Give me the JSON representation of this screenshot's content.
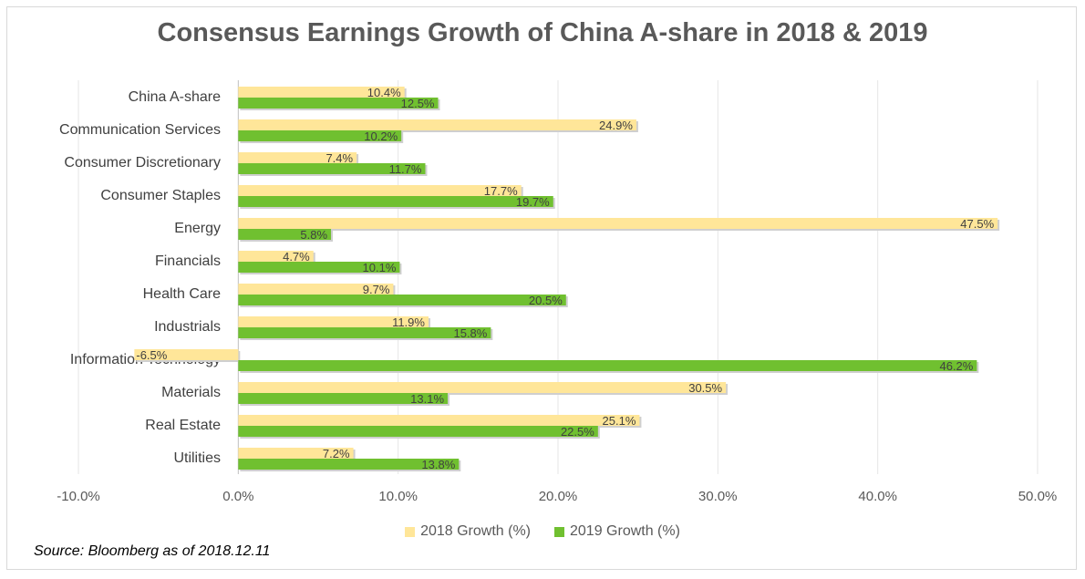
{
  "chart_data": {
    "type": "bar",
    "orientation": "horizontal",
    "title": "Consensus Earnings Growth of China A-share in 2018 & 2019",
    "categories": [
      "China A-share",
      "Communication Services",
      "Consumer Discretionary",
      "Consumer Staples",
      "Energy",
      "Financials",
      "Health Care",
      "Industrials",
      "Information Technology",
      "Materials",
      "Real Estate",
      "Utilities"
    ],
    "series": [
      {
        "name": "2018 Growth (%)",
        "color": "#ffe699",
        "values": [
          10.4,
          24.9,
          7.4,
          17.7,
          47.5,
          4.7,
          9.7,
          11.9,
          -6.5,
          30.5,
          25.1,
          7.2
        ],
        "labels": [
          "10.4%",
          "24.9%",
          "7.4%",
          "17.7%",
          "47.5%",
          "4.7%",
          "9.7%",
          "11.9%",
          "-6.5%",
          "30.5%",
          "25.1%",
          "7.2%"
        ]
      },
      {
        "name": "2019 Growth (%)",
        "color": "#70c030",
        "values": [
          12.5,
          10.2,
          11.7,
          19.7,
          5.8,
          10.1,
          20.5,
          15.8,
          46.2,
          13.1,
          22.5,
          13.8
        ],
        "labels": [
          "12.5%",
          "10.2%",
          "11.7%",
          "19.7%",
          "5.8%",
          "10.1%",
          "20.5%",
          "15.8%",
          "46.2%",
          "13.1%",
          "22.5%",
          "13.8%"
        ]
      }
    ],
    "xlim": [
      -10,
      50
    ],
    "xticks": [
      -10,
      0,
      10,
      20,
      30,
      40,
      50
    ],
    "xtick_labels": [
      "-10.0%",
      "0.0%",
      "10.0%",
      "20.0%",
      "30.0%",
      "40.0%",
      "50.0%"
    ],
    "grid": true,
    "legend_position": "bottom"
  },
  "source": "Source: Bloomberg as of 2018.12.11"
}
